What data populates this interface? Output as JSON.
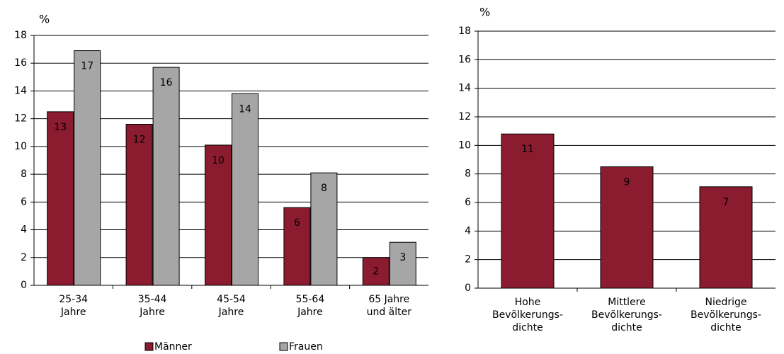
{
  "chart_data": [
    {
      "type": "bar",
      "ylabel": "%",
      "categories": [
        "25-34\nJahre",
        "35-44\nJahre",
        "45-54\nJahre",
        "55-64\nJahre",
        "65 Jahre\nund älter"
      ],
      "series": [
        {
          "name": "Männer",
          "color": "#8b1c2f",
          "label_color": "#ffffff",
          "values": [
            12.5,
            11.6,
            10.1,
            5.6,
            2.0
          ],
          "value_labels": [
            "13",
            "12",
            "10",
            "6",
            "2"
          ]
        },
        {
          "name": "Frauen",
          "color": "#a6a6a6",
          "label_color": "#000000",
          "values": [
            16.9,
            15.7,
            13.8,
            8.1,
            3.1
          ],
          "value_labels": [
            "17",
            "16",
            "14",
            "8",
            "3"
          ]
        }
      ],
      "ylim": [
        0,
        18
      ],
      "yticks": [
        0,
        2,
        4,
        6,
        8,
        10,
        12,
        14,
        16,
        18
      ],
      "grid": true,
      "legend": "bottom"
    },
    {
      "type": "bar",
      "ylabel": "%",
      "categories": [
        "Hohe\nBevölkerungs-\ndichte",
        "Mittlere\nBevölkerungs-\ndichte",
        "Niedrige\nBevölkerungs-\ndichte"
      ],
      "series": [
        {
          "color": "#8b1c2f",
          "label_color": "#ffffff",
          "values": [
            10.8,
            8.5,
            7.1
          ],
          "value_labels": [
            "11",
            "9",
            "7"
          ]
        }
      ],
      "ylim": [
        0,
        18
      ],
      "yticks": [
        0,
        2,
        4,
        6,
        8,
        10,
        12,
        14,
        16,
        18
      ],
      "grid": true
    }
  ]
}
